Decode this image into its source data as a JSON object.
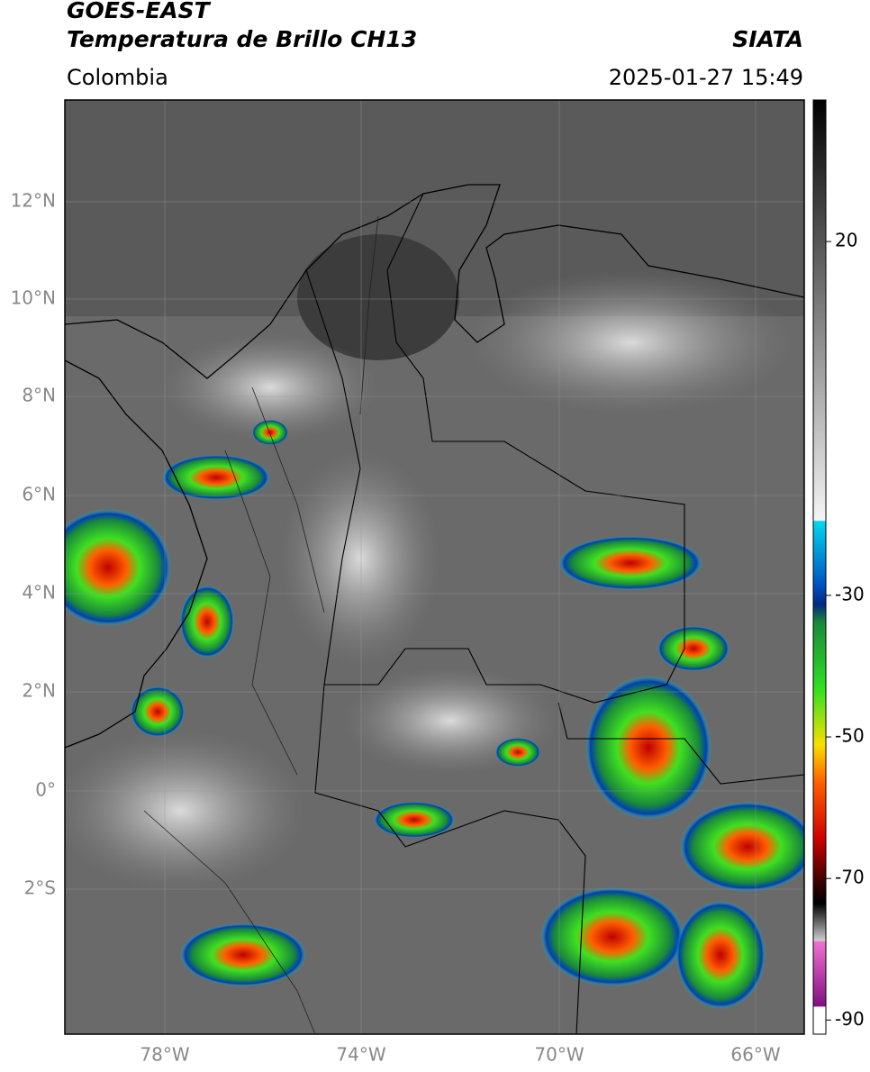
{
  "header": {
    "title": "GOES-EAST",
    "subtitle": "Temperatura de Brillo CH13",
    "source": "SIATA",
    "region": "Colombia",
    "timestamp": "2025-01-27 15:49"
  },
  "map": {
    "lat_labels": [
      "12°N",
      "10°N",
      "8°N",
      "6°N",
      "4°N",
      "2°N",
      "0°",
      "2°S"
    ],
    "lon_labels": [
      "78°W",
      "74°W",
      "70°W",
      "66°W"
    ]
  },
  "colorbar": {
    "lim": [
      40,
      -92
    ],
    "ticks": [
      20,
      -30,
      -50,
      -70,
      -90
    ]
  }
}
